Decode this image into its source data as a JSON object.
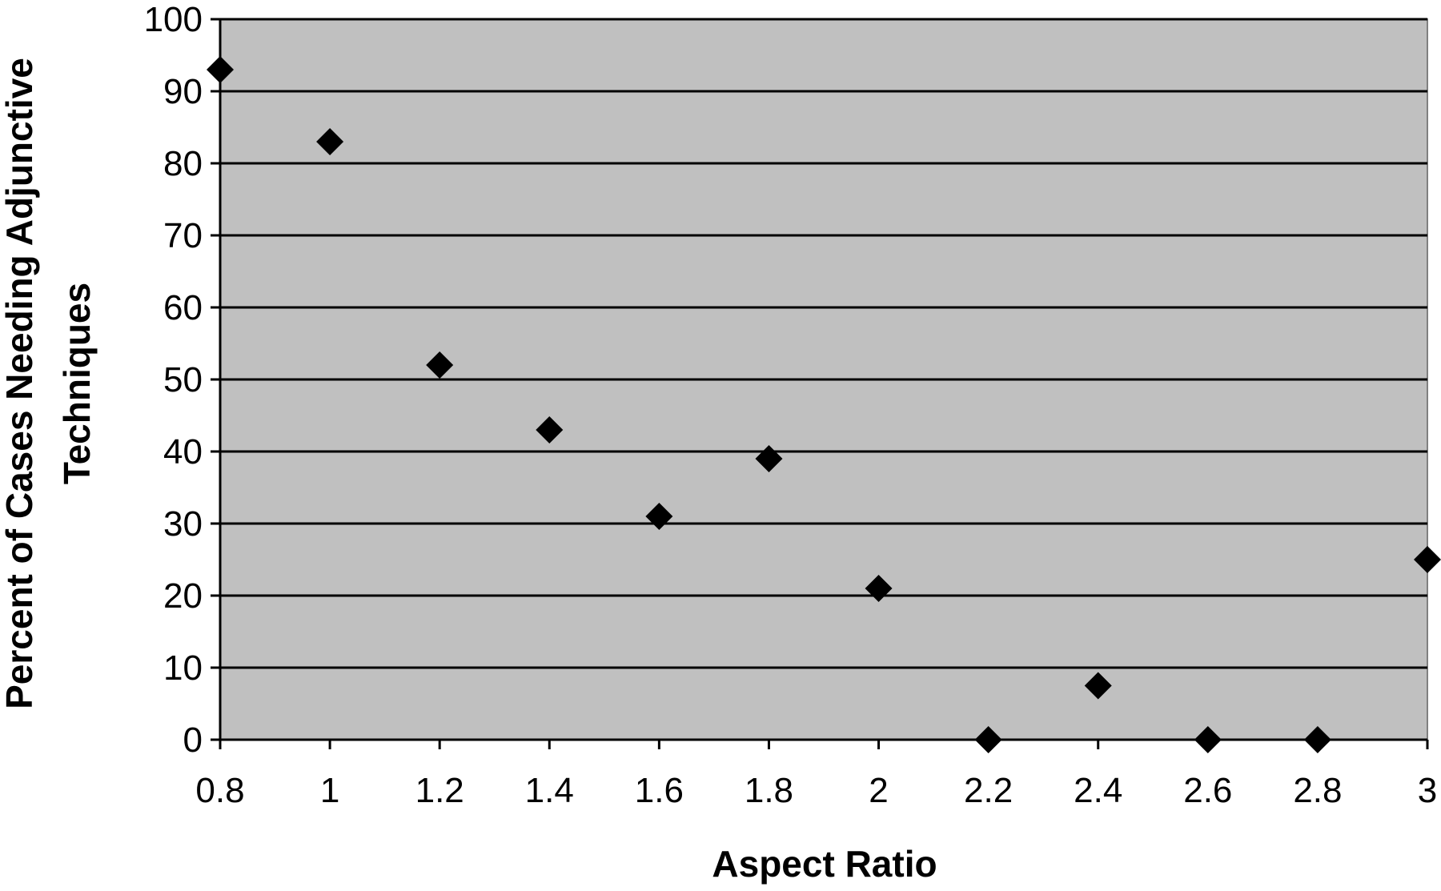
{
  "chart_data": {
    "type": "scatter",
    "title": "",
    "xlabel": "Aspect Ratio",
    "ylabel": [
      "Percent of Cases Needing Adjunctive",
      "Techniques"
    ],
    "xlim": [
      0.8,
      3
    ],
    "ylim": [
      0,
      100
    ],
    "x_ticks": [
      "0.8",
      "1",
      "1.2",
      "1.4",
      "1.6",
      "1.8",
      "2",
      "2.2",
      "2.4",
      "2.6",
      "2.8",
      "3"
    ],
    "y_ticks": [
      "0",
      "10",
      "20",
      "30",
      "40",
      "50",
      "60",
      "70",
      "80",
      "90",
      "100"
    ],
    "grid": "horizontal",
    "legend": "none",
    "marker": "diamond",
    "series": [
      {
        "points": [
          {
            "x": 0.8,
            "y": 93
          },
          {
            "x": 1.0,
            "y": 83
          },
          {
            "x": 1.2,
            "y": 52
          },
          {
            "x": 1.4,
            "y": 43
          },
          {
            "x": 1.6,
            "y": 31
          },
          {
            "x": 1.8,
            "y": 39
          },
          {
            "x": 2.0,
            "y": 21
          },
          {
            "x": 2.2,
            "y": 0
          },
          {
            "x": 2.4,
            "y": 7.5
          },
          {
            "x": 2.6,
            "y": 0
          },
          {
            "x": 2.8,
            "y": 0
          },
          {
            "x": 3.0,
            "y": 25
          }
        ]
      }
    ],
    "colors": {
      "plot_background": "#c0c0c0",
      "gridline": "#000000",
      "marker": "#000000"
    }
  }
}
